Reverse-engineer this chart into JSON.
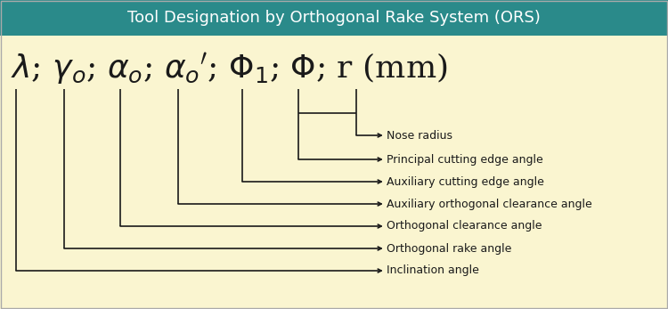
{
  "title": "Tool Designation by Orthogonal Rake System (ORS)",
  "title_bg": "#2a8a8a",
  "title_fg": "#ffffff",
  "body_bg": "#faf5d0",
  "line_color": "#1a1a1a",
  "text_color": "#1a1a1a",
  "labels": [
    "Nose radius",
    "Principal cutting edge angle",
    "Auxiliary cutting edge angle",
    "Auxiliary orthogonal clearance angle",
    "Orthogonal clearance angle",
    "Orthogonal rake angle",
    "Inclination angle"
  ],
  "title_fontsize": 13,
  "label_fontsize": 9,
  "formula_fontsize": 26
}
